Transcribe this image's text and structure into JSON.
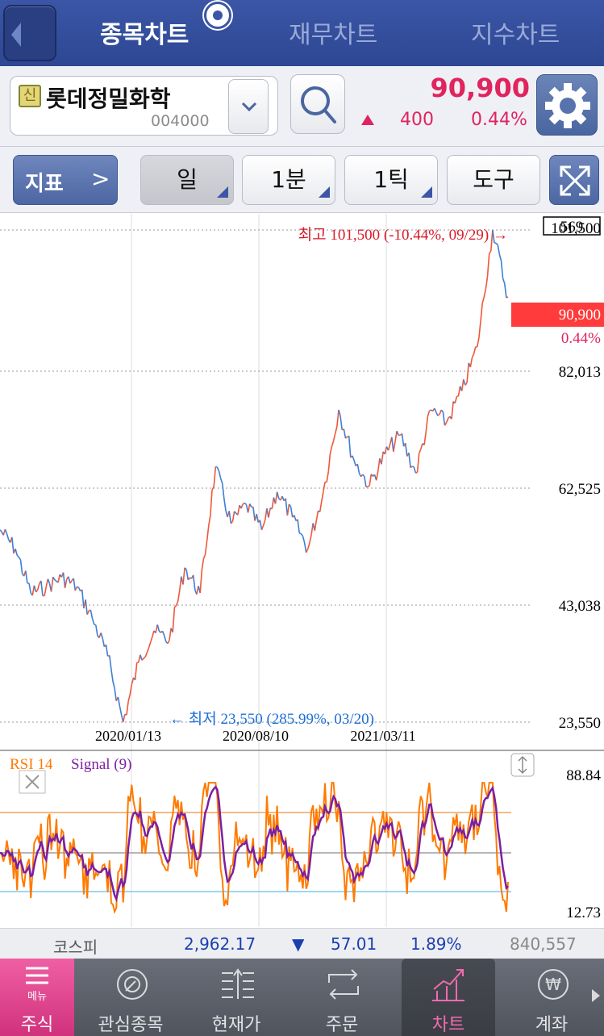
{
  "header": {
    "tabs": [
      {
        "label": "종목차트",
        "active": true
      },
      {
        "label": "재무차트",
        "active": false
      },
      {
        "label": "지수차트",
        "active": false
      }
    ]
  },
  "stock": {
    "credit_badge": "신",
    "name": "롯데정밀화학",
    "code": "004000",
    "price": "90,900",
    "change": "400",
    "change_pct": "0.44%",
    "change_direction": "up",
    "up_color": "#e0245e"
  },
  "toolbar": {
    "indicator_label": "지표",
    "indicator_arrow": ">",
    "period": "일",
    "minute": "1분",
    "tick": "1틱",
    "tools": "도구"
  },
  "chart": {
    "price_labels": {
      "volume_box": "569",
      "high": "101,500",
      "current": "90,900",
      "current_pct": "0.44%",
      "y1": "82,013",
      "y2": "62,525",
      "y3": "43,038",
      "low": "23,550"
    },
    "annotations": {
      "high": "최고 101,500 (-10.44%, 09/29) →",
      "low": "← 최저 23,550 (285.99%, 03/20)"
    },
    "x_labels": [
      "2020/01/13",
      "2020/08/10",
      "2021/03/11"
    ],
    "rsi": {
      "label_rsi": "RSI 14",
      "label_signal": "Signal (9)",
      "top": "88.84",
      "bottom": "12.73",
      "rsi_color": "#ff7a00",
      "signal_color": "#7b1fa2"
    }
  },
  "chart_data": {
    "type": "line",
    "x_labels": [
      "2020/01/13",
      "2020/08/10",
      "2021/03/11"
    ],
    "series": [
      {
        "values": [
          54000,
          51000,
          44000,
          45000,
          46500,
          45000,
          40000,
          34000,
          23550,
          33000,
          38000,
          36500,
          48000,
          44000,
          64000,
          55000,
          58000,
          54000,
          60000,
          56000,
          51000,
          60000,
          73000,
          65000,
          61000,
          66000,
          69000,
          63000,
          73000,
          71000,
          76000,
          83000,
          101500,
          90900
        ]
      }
    ],
    "ylim": [
      23550,
      101500
    ]
  },
  "index_bar": {
    "name": "코스피",
    "value": "2,962.17",
    "change": "57.01",
    "pct": "1.89%",
    "volume": "840,557"
  },
  "bottom_nav": {
    "menu_label": "메뉴",
    "menu_sub": "주식",
    "items": [
      {
        "label": "관심종목"
      },
      {
        "label": "현재가"
      },
      {
        "label": "주문"
      },
      {
        "label": "차트"
      },
      {
        "label": "계좌"
      }
    ]
  }
}
